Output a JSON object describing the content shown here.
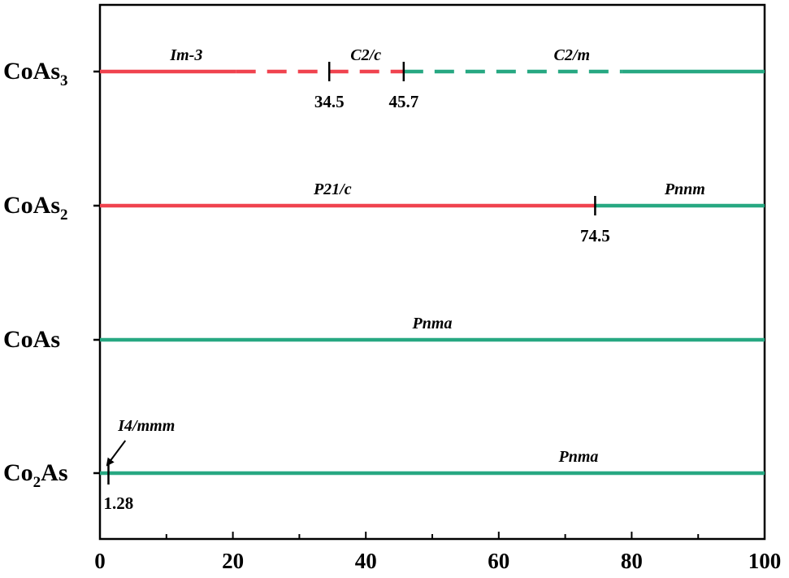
{
  "chart_data": {
    "type": "phase-diagram",
    "title": "",
    "xlabel": "",
    "ylabel": "",
    "xlim": [
      0,
      100
    ],
    "x_ticks": [
      0,
      20,
      40,
      60,
      80,
      100
    ],
    "colors": {
      "red": "#f0434f",
      "green": "#27a882",
      "axis": "#000000"
    },
    "rows": [
      {
        "compound": [
          "CoAs",
          "3"
        ],
        "segments": [
          {
            "x0": 0,
            "x1": 20.5,
            "color": "red",
            "style": "solid"
          },
          {
            "x0": 20.5,
            "x1": 45.7,
            "color": "red",
            "style": "dashed"
          },
          {
            "x0": 45.7,
            "x1": 78.5,
            "color": "green",
            "style": "dashed"
          },
          {
            "x0": 78.5,
            "x1": 100,
            "color": "green",
            "style": "solid"
          }
        ],
        "phases": [
          {
            "label": "Im-3",
            "x": 13
          },
          {
            "label": "C2/c",
            "x": 40
          },
          {
            "label": "C2/m",
            "x": 71
          }
        ],
        "transitions": [
          {
            "x": 34.5,
            "label": "34.5"
          },
          {
            "x": 45.7,
            "label": "45.7"
          }
        ]
      },
      {
        "compound": [
          "CoAs",
          "2"
        ],
        "segments": [
          {
            "x0": 0,
            "x1": 74.5,
            "color": "red",
            "style": "solid"
          },
          {
            "x0": 74.5,
            "x1": 100,
            "color": "green",
            "style": "solid"
          }
        ],
        "phases": [
          {
            "label": "P21/c",
            "x": 35
          },
          {
            "label": "Pnnm",
            "x": 88
          }
        ],
        "transitions": [
          {
            "x": 74.5,
            "label": "74.5"
          }
        ]
      },
      {
        "compound": [
          "CoAs",
          ""
        ],
        "segments": [
          {
            "x0": 0,
            "x1": 100,
            "color": "green",
            "style": "solid"
          }
        ],
        "phases": [
          {
            "label": "Pnma",
            "x": 50
          }
        ],
        "transitions": []
      },
      {
        "compound": [
          "Co",
          "2",
          "As"
        ],
        "segments": [
          {
            "x0": 0,
            "x1": 100,
            "color": "green",
            "style": "solid"
          }
        ],
        "phases": [
          {
            "label": "I4/mmm",
            "x": 7,
            "arrow": true
          },
          {
            "label": "Pnma",
            "x": 72
          }
        ],
        "transitions": [
          {
            "x": 1.28,
            "label": "1.28"
          }
        ]
      }
    ]
  }
}
